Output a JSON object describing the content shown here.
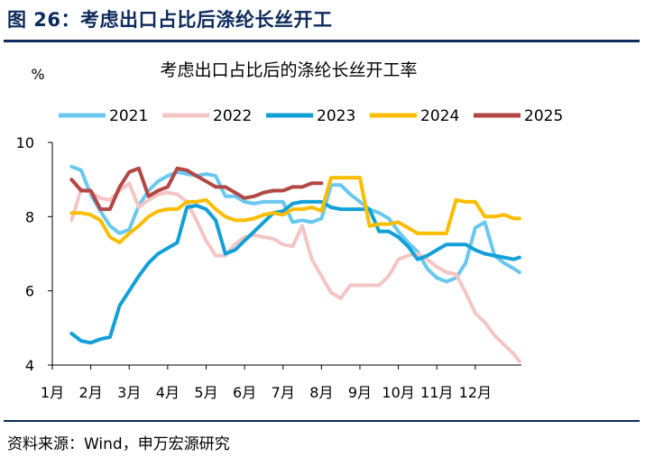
{
  "header": {
    "figure_title": "图 26：考虑出口占比后涤纶长丝开工"
  },
  "footer": {
    "source": "资料来源：Wind，申万宏源研究"
  },
  "colors": {
    "title_navy": "#0c2a5b"
  },
  "chart_data": {
    "type": "line",
    "title": "考虑出口占比后的涤纶长丝开工率",
    "ylabel": "%",
    "ylim": [
      4,
      10
    ],
    "yticks": [
      4,
      6,
      8,
      10
    ],
    "xlim": [
      1,
      13.2
    ],
    "x_tick_labels": [
      "1月",
      "2月",
      "3月",
      "4月",
      "5月",
      "6月",
      "7月",
      "8月",
      "9月",
      "10月",
      "11月",
      "12月"
    ],
    "legend_position": "top",
    "grid": false,
    "series": [
      {
        "name": "2021",
        "color": "#69c8f0",
        "x": [
          1.5,
          1.75,
          1.9,
          2.0,
          2.25,
          2.5,
          2.75,
          3.0,
          3.25,
          3.5,
          3.75,
          4.0,
          4.25,
          4.5,
          4.75,
          5.0,
          5.25,
          5.5,
          5.75,
          6.0,
          6.25,
          6.5,
          6.75,
          7.0,
          7.25,
          7.5,
          7.75,
          8.0,
          8.25,
          8.5,
          8.75,
          9.0,
          9.25,
          9.5,
          9.75,
          10.0,
          10.25,
          10.5,
          10.75,
          11.0,
          11.25,
          11.5,
          11.75,
          12.0,
          12.25,
          12.5,
          12.75,
          13.0,
          13.15
        ],
        "y": [
          9.35,
          9.25,
          8.85,
          8.6,
          8.15,
          7.75,
          7.55,
          7.65,
          8.3,
          8.7,
          8.95,
          9.1,
          9.2,
          9.15,
          9.1,
          9.15,
          9.1,
          8.55,
          8.55,
          8.4,
          8.35,
          8.4,
          8.4,
          8.4,
          7.85,
          7.9,
          7.85,
          7.95,
          8.85,
          8.85,
          8.6,
          8.4,
          8.2,
          8.1,
          7.95,
          7.6,
          7.3,
          7.05,
          6.6,
          6.35,
          6.25,
          6.35,
          6.75,
          7.7,
          7.85,
          6.95,
          6.75,
          6.6,
          6.5
        ]
      },
      {
        "name": "2022",
        "color": "#f5c5c5",
        "x": [
          1.5,
          1.65,
          1.75,
          2.0,
          2.25,
          2.5,
          2.75,
          3.0,
          3.25,
          3.5,
          3.75,
          4.0,
          4.25,
          4.5,
          4.75,
          5.0,
          5.25,
          5.5,
          5.75,
          6.0,
          6.25,
          6.5,
          6.75,
          7.0,
          7.25,
          7.5,
          7.75,
          8.0,
          8.25,
          8.5,
          8.75,
          9.0,
          9.25,
          9.5,
          9.75,
          10.0,
          10.25,
          10.5,
          10.75,
          11.0,
          11.25,
          11.5,
          11.75,
          12.0,
          12.25,
          12.5,
          12.75,
          13.0,
          13.15
        ],
        "y": [
          7.9,
          8.4,
          8.75,
          8.65,
          8.5,
          8.45,
          8.7,
          8.9,
          8.25,
          8.45,
          8.6,
          8.65,
          8.6,
          8.4,
          7.9,
          7.35,
          6.95,
          6.95,
          7.25,
          7.45,
          7.5,
          7.45,
          7.4,
          7.25,
          7.2,
          7.75,
          6.85,
          6.4,
          5.95,
          5.8,
          6.15,
          6.15,
          6.15,
          6.15,
          6.4,
          6.85,
          6.95,
          7.0,
          6.85,
          6.65,
          6.5,
          6.45,
          5.95,
          5.4,
          5.15,
          4.8,
          4.55,
          4.3,
          4.1
        ]
      },
      {
        "name": "2023",
        "color": "#12a0d8",
        "x": [
          1.5,
          1.75,
          2.0,
          2.25,
          2.5,
          2.75,
          3.0,
          3.25,
          3.5,
          3.75,
          4.0,
          4.25,
          4.5,
          4.75,
          5.0,
          5.25,
          5.5,
          5.75,
          6.0,
          6.25,
          6.5,
          6.75,
          7.0,
          7.25,
          7.5,
          7.75,
          8.0,
          8.25,
          8.5,
          8.75,
          9.0,
          9.25,
          9.5,
          9.75,
          10.0,
          10.25,
          10.5,
          10.75,
          11.0,
          11.25,
          11.5,
          11.75,
          12.0,
          12.25,
          12.5,
          12.75,
          13.0,
          13.15
        ],
        "y": [
          4.85,
          4.65,
          4.6,
          4.7,
          4.75,
          5.6,
          6.0,
          6.4,
          6.75,
          7.0,
          7.15,
          7.3,
          8.25,
          8.3,
          8.2,
          7.9,
          7.0,
          7.1,
          7.35,
          7.6,
          7.85,
          8.1,
          8.15,
          8.35,
          8.4,
          8.4,
          8.4,
          8.25,
          8.2,
          8.2,
          8.2,
          8.2,
          7.6,
          7.6,
          7.45,
          7.2,
          6.85,
          6.95,
          7.1,
          7.25,
          7.25,
          7.25,
          7.1,
          7.0,
          6.95,
          6.9,
          6.85,
          6.9
        ]
      },
      {
        "name": "2024",
        "color": "#fbbd00",
        "x": [
          1.5,
          1.75,
          2.0,
          2.25,
          2.5,
          2.75,
          3.0,
          3.25,
          3.5,
          3.75,
          4.0,
          4.25,
          4.5,
          4.75,
          5.0,
          5.25,
          5.5,
          5.75,
          6.0,
          6.25,
          6.5,
          6.75,
          7.0,
          7.25,
          7.5,
          7.75,
          8.0,
          8.25,
          8.5,
          8.75,
          9.0,
          9.25,
          9.5,
          9.75,
          10.0,
          10.25,
          10.5,
          10.75,
          11.0,
          11.25,
          11.5,
          11.75,
          12.0,
          12.25,
          12.5,
          12.75,
          13.0,
          13.15
        ],
        "y": [
          8.1,
          8.1,
          8.05,
          7.9,
          7.45,
          7.3,
          7.55,
          7.75,
          8.0,
          8.15,
          8.2,
          8.2,
          8.4,
          8.4,
          8.45,
          8.2,
          8.0,
          7.9,
          7.9,
          7.95,
          8.05,
          8.1,
          8.05,
          8.2,
          8.2,
          8.25,
          8.15,
          9.05,
          9.05,
          9.05,
          9.05,
          7.75,
          7.8,
          7.8,
          7.85,
          7.7,
          7.55,
          7.55,
          7.55,
          7.55,
          8.45,
          8.4,
          8.4,
          8.0,
          8.0,
          8.05,
          7.95,
          7.95
        ]
      },
      {
        "name": "2025",
        "color": "#b24743",
        "x": [
          1.5,
          1.75,
          2.0,
          2.25,
          2.5,
          2.75,
          3.0,
          3.25,
          3.5,
          3.75,
          4.0,
          4.25,
          4.5,
          4.75,
          5.0,
          5.25,
          5.5,
          5.75,
          6.0,
          6.25,
          6.5,
          6.75,
          7.0,
          7.25,
          7.5,
          7.75,
          8.0
        ],
        "y": [
          9.0,
          8.7,
          8.7,
          8.2,
          8.2,
          8.8,
          9.2,
          9.3,
          8.55,
          8.7,
          8.8,
          9.3,
          9.25,
          9.1,
          8.95,
          8.8,
          8.8,
          8.65,
          8.5,
          8.55,
          8.65,
          8.7,
          8.7,
          8.8,
          8.8,
          8.9,
          8.9
        ]
      }
    ]
  }
}
